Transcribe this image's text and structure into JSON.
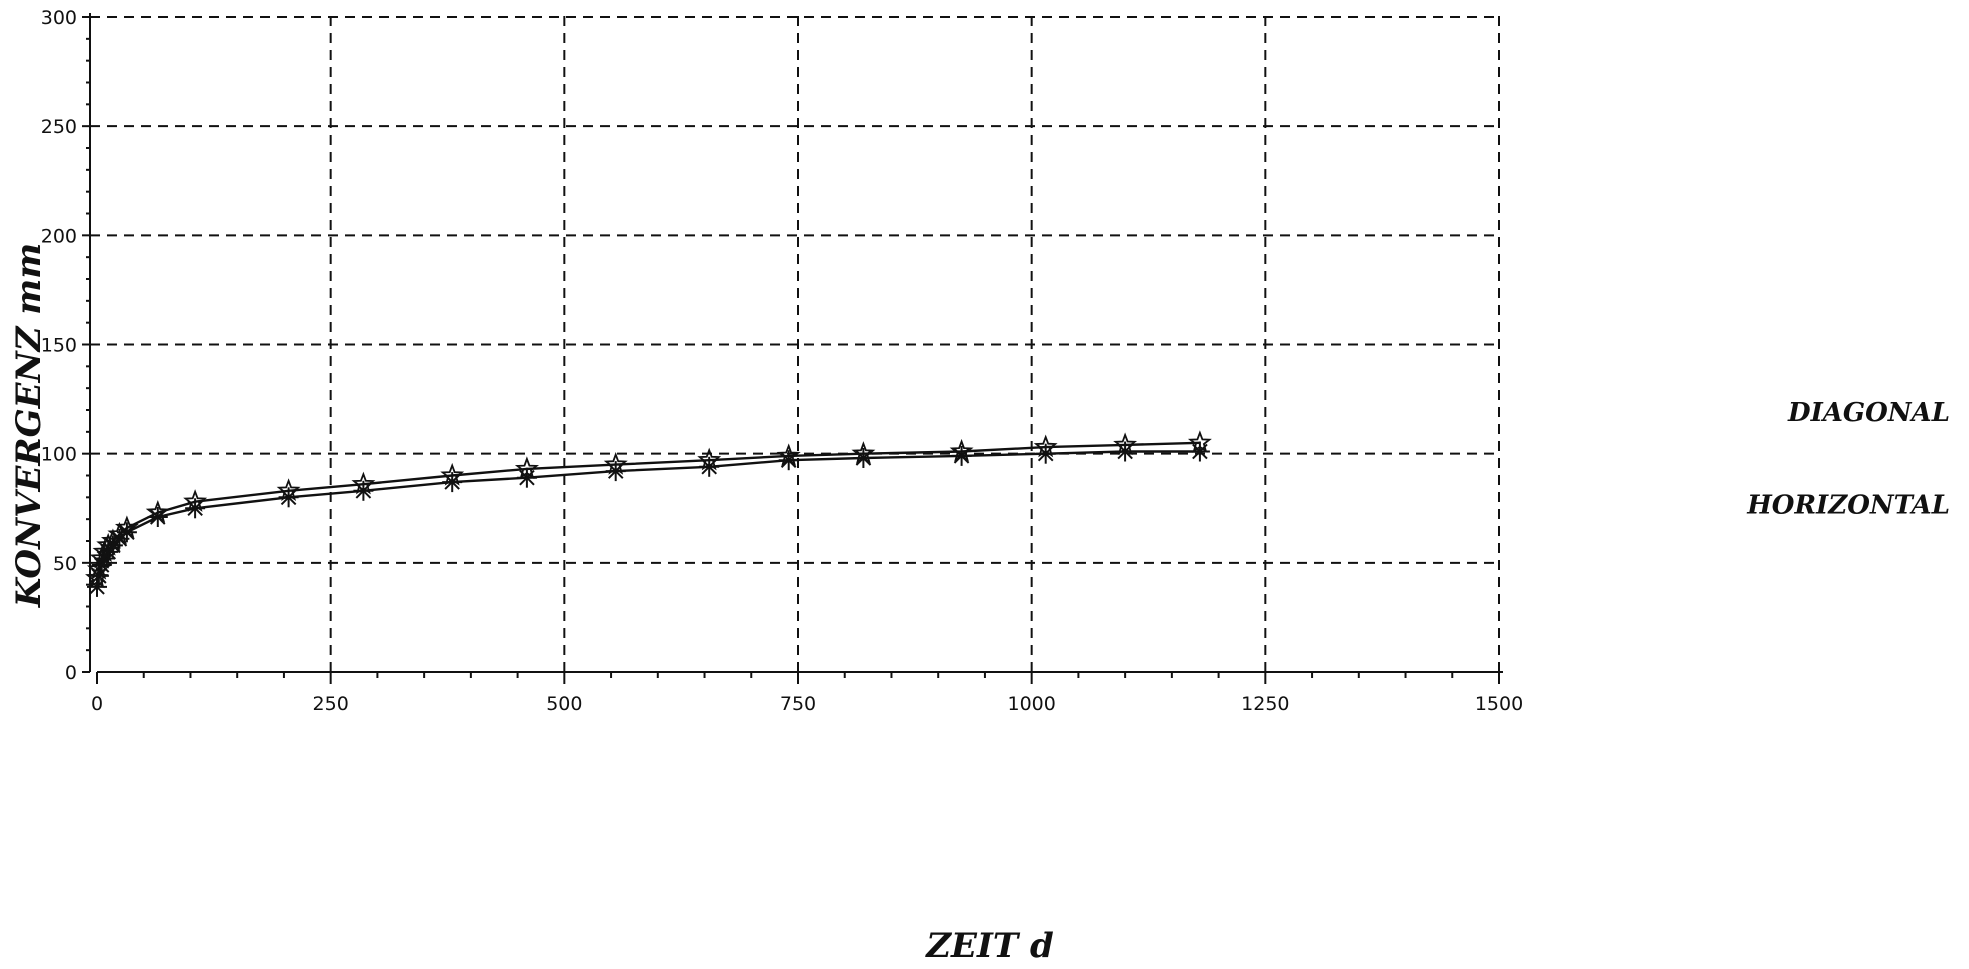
{
  "chart_data": {
    "type": "line",
    "title": "",
    "xlabel": "ZEIT  d",
    "ylabel": "KONVERGENZ  mm",
    "xlim": [
      0,
      1500
    ],
    "ylim": [
      0,
      300
    ],
    "xticks": [
      0,
      250,
      500,
      750,
      1000,
      1250,
      1500
    ],
    "yticks": [
      0,
      50,
      100,
      150,
      200,
      250,
      300
    ],
    "grid": true,
    "series": [
      {
        "name": "DIAGONAL",
        "marker": "star-outline",
        "x": [
          0,
          2,
          5,
          8,
          12,
          17,
          24,
          32,
          65,
          105,
          205,
          285,
          380,
          460,
          555,
          655,
          740,
          820,
          925,
          1015,
          1100,
          1180
        ],
        "y": [
          43,
          47,
          52,
          55,
          58,
          60,
          63,
          66,
          73,
          78,
          83,
          86,
          90,
          93,
          95,
          97,
          99,
          100,
          101,
          103,
          104,
          105
        ]
      },
      {
        "name": "HORIZONTAL",
        "marker": "asterisk",
        "x": [
          0,
          2,
          5,
          8,
          12,
          17,
          24,
          32,
          65,
          105,
          205,
          285,
          380,
          460,
          555,
          655,
          740,
          820,
          925,
          1015,
          1100,
          1180
        ],
        "y": [
          39,
          44,
          49,
          52,
          55,
          58,
          61,
          64,
          71,
          75,
          80,
          83,
          87,
          89,
          92,
          94,
          97,
          98,
          99,
          100,
          101,
          101
        ]
      }
    ]
  }
}
